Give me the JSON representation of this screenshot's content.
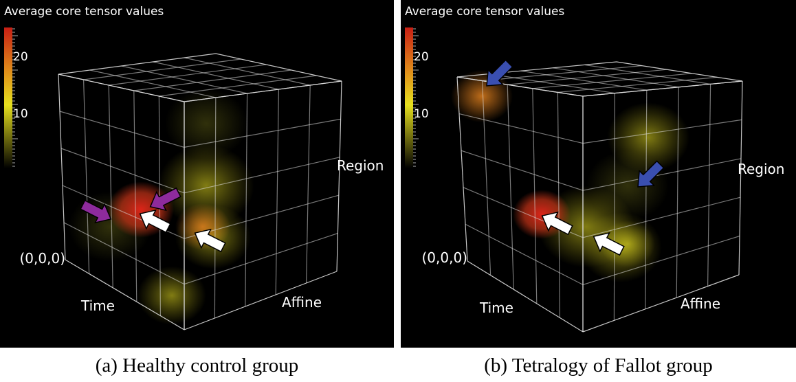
{
  "panels": [
    {
      "title": "Average core tensor values",
      "colorbar_ticks": [
        "20",
        "10"
      ],
      "axis_labels": {
        "region": "Region",
        "origin": "(0,0,0)",
        "time": "Time",
        "affine": "Affine"
      },
      "caption": "(a) Healthy control group"
    },
    {
      "title": "Average core tensor values",
      "colorbar_ticks": [
        "20",
        "10"
      ],
      "axis_labels": {
        "region": "Region",
        "origin": "(0,0,0)",
        "time": "Time",
        "affine": "Affine"
      },
      "caption": "(b) Tetralogy of Fallot group"
    }
  ]
}
